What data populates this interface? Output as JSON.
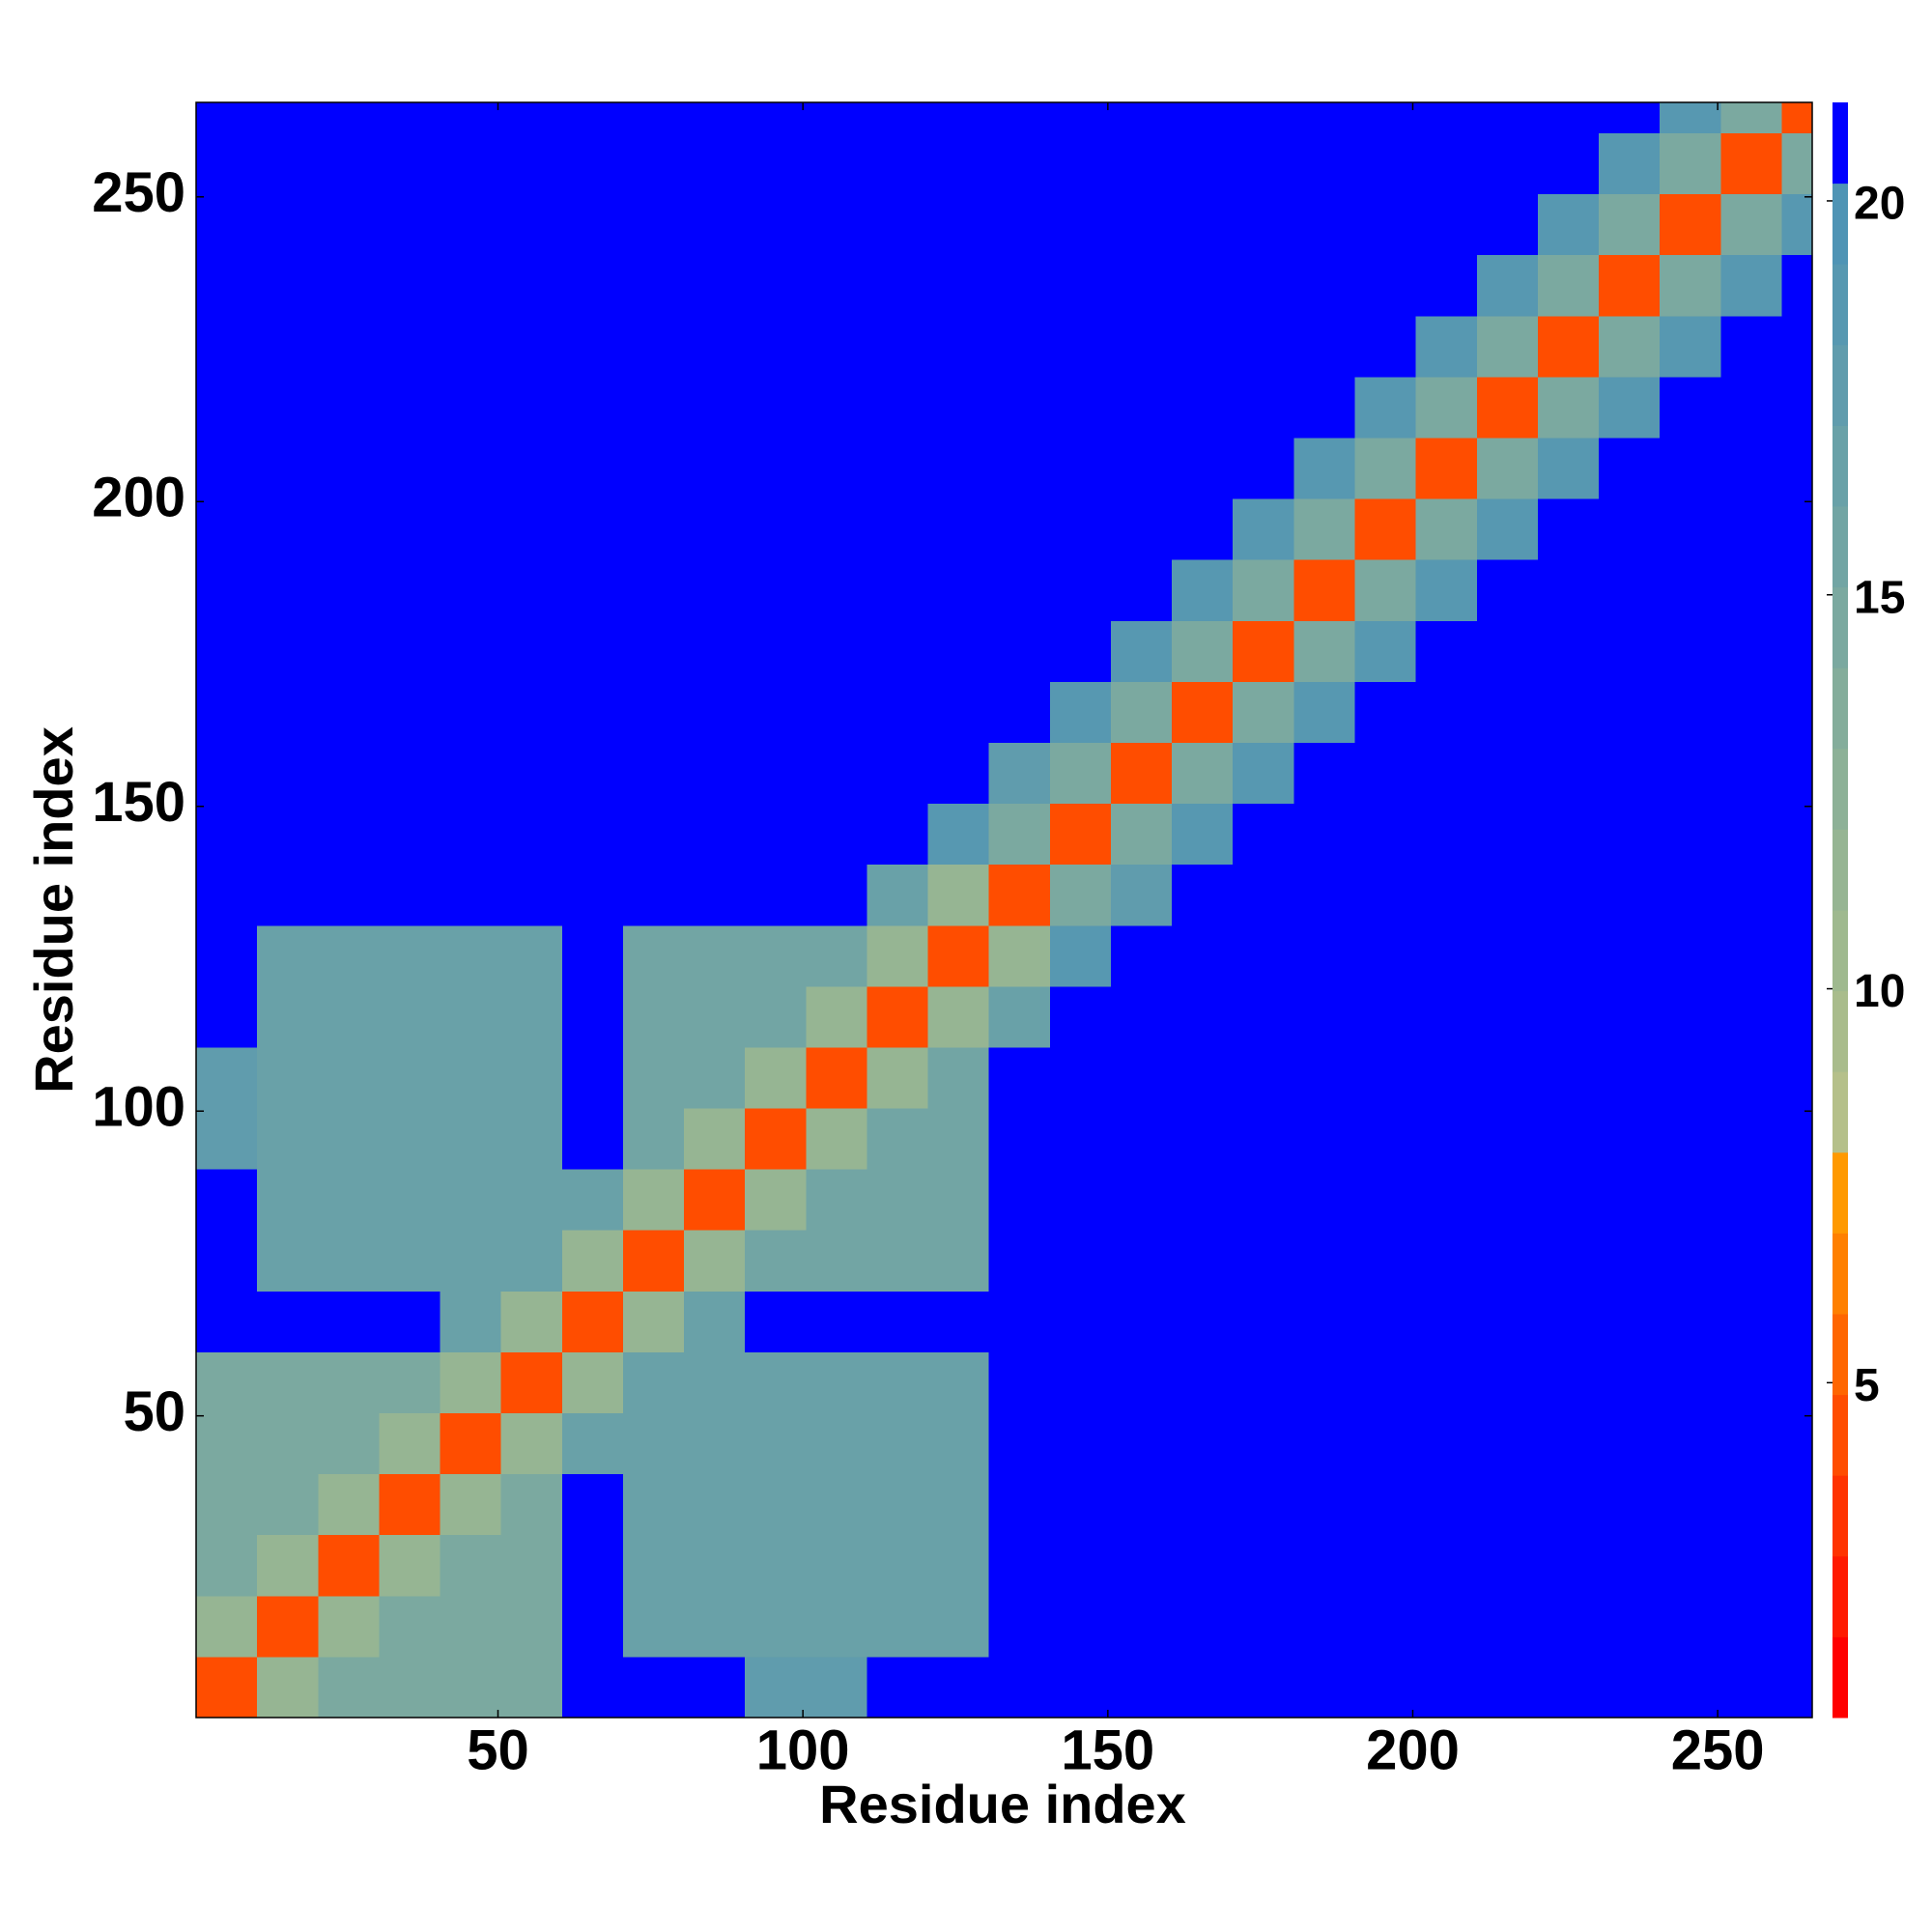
{
  "chart_data": {
    "type": "heatmap",
    "xlabel": "Residue index",
    "ylabel": "Residue index",
    "xbins": [
      0.5,
      10.5,
      20.5,
      30.5,
      40.5,
      50.5,
      60.5,
      70.5,
      80.5,
      90.5,
      100.5,
      110.5,
      120.5,
      130.5,
      140.5,
      150.5,
      160.5,
      170.5,
      180.5,
      190.5,
      200.5,
      210.5,
      220.5,
      230.5,
      240.5,
      250.5,
      260.5,
      265.5
    ],
    "ybins": [
      0.5,
      10.5,
      20.5,
      30.5,
      40.5,
      50.5,
      60.5,
      70.5,
      80.5,
      90.5,
      100.5,
      110.5,
      120.5,
      130.5,
      140.5,
      150.5,
      160.5,
      170.5,
      180.5,
      190.5,
      200.5,
      210.5,
      220.5,
      230.5,
      240.5,
      250.5,
      260.5,
      265.5
    ],
    "values": [
      [
        4,
        12,
        15,
        15,
        15,
        15,
        21,
        21,
        21,
        18,
        18,
        21,
        21,
        21,
        21,
        21,
        21,
        21,
        21,
        21,
        21,
        21,
        21,
        21,
        21,
        21,
        21
      ],
      [
        12,
        4,
        12,
        15,
        15,
        15,
        21,
        17,
        17,
        17,
        17,
        17,
        17,
        21,
        21,
        21,
        21,
        21,
        21,
        21,
        21,
        21,
        21,
        21,
        21,
        21,
        21
      ],
      [
        15,
        12,
        4,
        12,
        15,
        15,
        21,
        17,
        17,
        17,
        17,
        17,
        17,
        21,
        21,
        21,
        21,
        21,
        21,
        21,
        21,
        21,
        21,
        21,
        21,
        21,
        21
      ],
      [
        15,
        15,
        12,
        4,
        12,
        15,
        21,
        17,
        17,
        17,
        17,
        17,
        17,
        21,
        21,
        21,
        21,
        21,
        21,
        21,
        21,
        21,
        21,
        21,
        21,
        21,
        21
      ],
      [
        15,
        15,
        15,
        12,
        4,
        12,
        17,
        17,
        17,
        17,
        17,
        17,
        17,
        21,
        21,
        21,
        21,
        21,
        21,
        21,
        21,
        21,
        21,
        21,
        21,
        21,
        21
      ],
      [
        15,
        15,
        15,
        15,
        12,
        4,
        12,
        17,
        17,
        17,
        17,
        17,
        17,
        21,
        21,
        21,
        21,
        21,
        21,
        21,
        21,
        21,
        21,
        21,
        21,
        21,
        21
      ],
      [
        21,
        21,
        21,
        21,
        17,
        12,
        4,
        12,
        17,
        21,
        21,
        21,
        21,
        21,
        21,
        21,
        21,
        21,
        21,
        21,
        21,
        21,
        21,
        21,
        21,
        21,
        21
      ],
      [
        21,
        17,
        17,
        17,
        17,
        17,
        12,
        4,
        12,
        16,
        16,
        16,
        16,
        21,
        21,
        21,
        21,
        21,
        21,
        21,
        21,
        21,
        21,
        21,
        21,
        21,
        21
      ],
      [
        21,
        17,
        17,
        17,
        17,
        17,
        17,
        12,
        4,
        12,
        16,
        16,
        16,
        21,
        21,
        21,
        21,
        21,
        21,
        21,
        21,
        21,
        21,
        21,
        21,
        21,
        21
      ],
      [
        18,
        17,
        17,
        17,
        17,
        17,
        21,
        16,
        12,
        4,
        12,
        16,
        16,
        21,
        21,
        21,
        21,
        21,
        21,
        21,
        21,
        21,
        21,
        21,
        21,
        21,
        21
      ],
      [
        18,
        17,
        17,
        17,
        17,
        17,
        21,
        16,
        16,
        12,
        4,
        12,
        16,
        21,
        21,
        21,
        21,
        21,
        21,
        21,
        21,
        21,
        21,
        21,
        21,
        21,
        21
      ],
      [
        21,
        17,
        17,
        17,
        17,
        17,
        21,
        16,
        16,
        16,
        12,
        4,
        12,
        17,
        21,
        21,
        21,
        21,
        21,
        21,
        21,
        21,
        21,
        21,
        21,
        21,
        21
      ],
      [
        21,
        17,
        17,
        17,
        17,
        17,
        21,
        16,
        16,
        16,
        16,
        12,
        4,
        12,
        19,
        21,
        21,
        21,
        21,
        21,
        21,
        21,
        21,
        21,
        21,
        21,
        21
      ],
      [
        21,
        21,
        21,
        21,
        21,
        21,
        21,
        21,
        21,
        21,
        21,
        17,
        12,
        4,
        15,
        18,
        21,
        21,
        21,
        21,
        21,
        21,
        21,
        21,
        21,
        21,
        21
      ],
      [
        21,
        21,
        21,
        21,
        21,
        21,
        21,
        21,
        21,
        21,
        21,
        21,
        19,
        15,
        4,
        15,
        19,
        21,
        21,
        21,
        21,
        21,
        21,
        21,
        21,
        21,
        21
      ],
      [
        21,
        21,
        21,
        21,
        21,
        21,
        21,
        21,
        21,
        21,
        21,
        21,
        21,
        18,
        15,
        4,
        15,
        19,
        21,
        21,
        21,
        21,
        21,
        21,
        21,
        21,
        21
      ],
      [
        21,
        21,
        21,
        21,
        21,
        21,
        21,
        21,
        21,
        21,
        21,
        21,
        21,
        21,
        19,
        15,
        4,
        15,
        19,
        21,
        21,
        21,
        21,
        21,
        21,
        21,
        21
      ],
      [
        21,
        21,
        21,
        21,
        21,
        21,
        21,
        21,
        21,
        21,
        21,
        21,
        21,
        21,
        21,
        19,
        15,
        4,
        15,
        19,
        21,
        21,
        21,
        21,
        21,
        21,
        21
      ],
      [
        21,
        21,
        21,
        21,
        21,
        21,
        21,
        21,
        21,
        21,
        21,
        21,
        21,
        21,
        21,
        21,
        19,
        15,
        4,
        15,
        19,
        21,
        21,
        21,
        21,
        21,
        21
      ],
      [
        21,
        21,
        21,
        21,
        21,
        21,
        21,
        21,
        21,
        21,
        21,
        21,
        21,
        21,
        21,
        21,
        21,
        19,
        15,
        4,
        15,
        19,
        21,
        21,
        21,
        21,
        21
      ],
      [
        21,
        21,
        21,
        21,
        21,
        21,
        21,
        21,
        21,
        21,
        21,
        21,
        21,
        21,
        21,
        21,
        21,
        21,
        19,
        15,
        4,
        15,
        19,
        21,
        21,
        21,
        21
      ],
      [
        21,
        21,
        21,
        21,
        21,
        21,
        21,
        21,
        21,
        21,
        21,
        21,
        21,
        21,
        21,
        21,
        21,
        21,
        21,
        19,
        15,
        4,
        15,
        19,
        21,
        21,
        21
      ],
      [
        21,
        21,
        21,
        21,
        21,
        21,
        21,
        21,
        21,
        21,
        21,
        21,
        21,
        21,
        21,
        21,
        21,
        21,
        21,
        21,
        19,
        15,
        4,
        15,
        19,
        21,
        21
      ],
      [
        21,
        21,
        21,
        21,
        21,
        21,
        21,
        21,
        21,
        21,
        21,
        21,
        21,
        21,
        21,
        21,
        21,
        21,
        21,
        21,
        21,
        19,
        15,
        4,
        15,
        19,
        21
      ],
      [
        21,
        21,
        21,
        21,
        21,
        21,
        21,
        21,
        21,
        21,
        21,
        21,
        21,
        21,
        21,
        21,
        21,
        21,
        21,
        21,
        21,
        21,
        19,
        15,
        4,
        15,
        19
      ],
      [
        21,
        21,
        21,
        21,
        21,
        21,
        21,
        21,
        21,
        21,
        21,
        21,
        21,
        21,
        21,
        21,
        21,
        21,
        21,
        21,
        21,
        21,
        21,
        19,
        15,
        4,
        15
      ],
      [
        21,
        21,
        21,
        21,
        21,
        21,
        21,
        21,
        21,
        21,
        21,
        21,
        21,
        21,
        21,
        21,
        21,
        21,
        21,
        21,
        21,
        21,
        21,
        21,
        19,
        15,
        4
      ]
    ],
    "xlim": [
      0.5,
      265.5
    ],
    "ylim": [
      0.5,
      265.5
    ],
    "xticks": [
      50,
      100,
      150,
      200,
      250
    ],
    "yticks": [
      50,
      100,
      150,
      200,
      250
    ],
    "zlim": [
      0.75,
      21.25
    ],
    "zticks": [
      5,
      10,
      15,
      20
    ],
    "colors": [
      "#ff0000",
      "#ff1a00",
      "#ff3300",
      "#ff4d00",
      "#ff6600",
      "#ff8000",
      "#ff9900",
      "#b5c08a",
      "#a9bc8c",
      "#9fb98f",
      "#96b593",
      "#8db197",
      "#84ad9b",
      "#7ba9a0",
      "#72a5a4",
      "#69a1a8",
      "#609cad",
      "#5798b1",
      "#4f94b5",
      "#0000ff"
    ]
  }
}
